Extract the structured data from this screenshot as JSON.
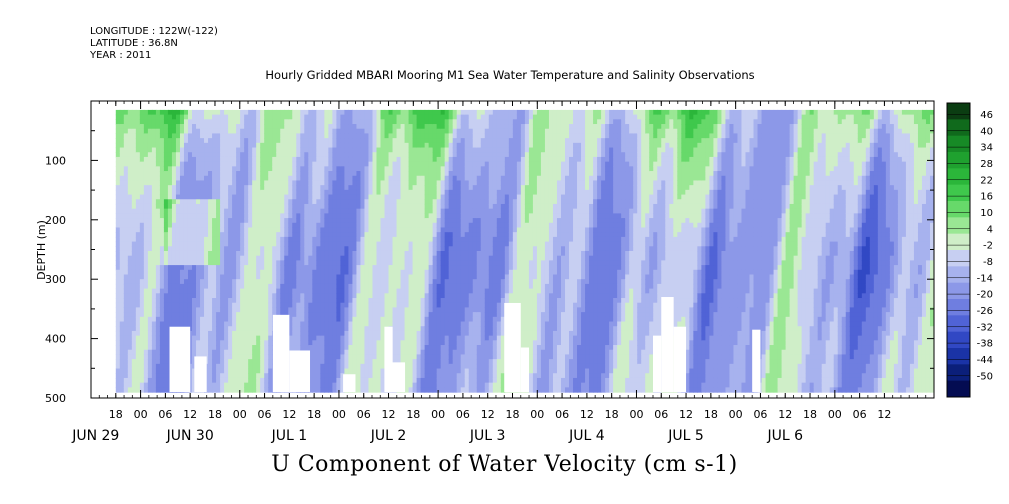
{
  "header": {
    "longitude": "LONGITUDE : 122W(-122)",
    "latitude": "LATITUDE : 36.8N",
    "year": "YEAR : 2011",
    "title": "Hourly Gridded MBARI Mooring M1 Sea Water Temperature and Salinity Observations"
  },
  "footer_title": "U Component of Water Velocity (cm s-1)",
  "chart_data": {
    "type": "heatmap",
    "title": "Hourly Gridded MBARI Mooring M1 Sea Water Temperature and Salinity Observations",
    "variable": "U Component of Water Velocity (cm s-1)",
    "ylabel": "DEPTH (m)",
    "ylim": [
      500,
      0
    ],
    "y_ticks": [
      100,
      200,
      300,
      400,
      500
    ],
    "x_hour_ticks": [
      "18",
      "00",
      "06",
      "12",
      "18",
      "00",
      "06",
      "12",
      "18",
      "00",
      "06",
      "12",
      "18",
      "00",
      "06",
      "12",
      "18",
      "00",
      "06",
      "12",
      "18",
      "00",
      "06",
      "12",
      "18",
      "00",
      "06",
      "12",
      "18",
      "00",
      "06",
      "12"
    ],
    "x_day_labels": [
      "JUN 29",
      "JUN 30",
      "JUL  1",
      "JUL  2",
      "JUL  3",
      "JUL  4",
      "JUL  5",
      "JUL  6"
    ],
    "x_range_hours_from_jun29_12": [
      0,
      204
    ],
    "colorbar_levels": [
      46,
      40,
      34,
      28,
      22,
      16,
      10,
      4,
      -2,
      -8,
      -14,
      -20,
      -26,
      -32,
      -38,
      -44,
      -50
    ],
    "colorbar_colors": [
      "#0b3d12",
      "#106a1c",
      "#178a26",
      "#1fa12f",
      "#2bb63a",
      "#3fc84c",
      "#67d96a",
      "#9ae794",
      "#cfeec8",
      "#c7cff2",
      "#a7b2ee",
      "#8c98e8",
      "#6f7ee0",
      "#5063d6",
      "#3148c4",
      "#1a33a6",
      "#0b1f7a",
      "#040c52"
    ],
    "data_start_hour": 6,
    "missing_fill": "#ffffff"
  }
}
